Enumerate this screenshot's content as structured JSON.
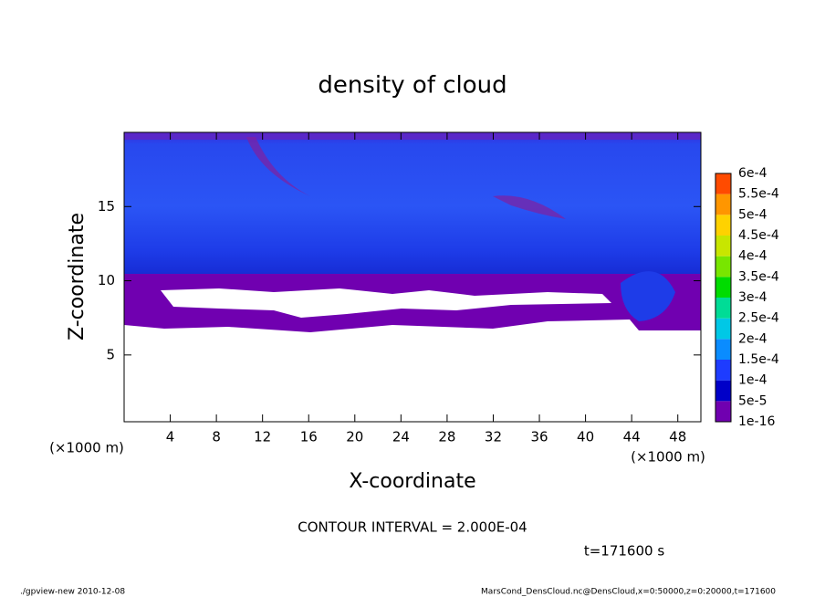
{
  "chart_data": {
    "type": "contour",
    "title": "density of cloud",
    "xlabel": "X-coordinate",
    "ylabel": "Z-coordinate",
    "x_unit": "(×1000 m)",
    "y_unit": "(×1000 m)",
    "xlim": [
      0,
      50
    ],
    "ylim": [
      0.5,
      20
    ],
    "xticks": [
      4,
      8,
      12,
      16,
      20,
      24,
      28,
      32,
      36,
      40,
      44,
      48
    ],
    "yticks": [
      5,
      10,
      15
    ],
    "levels": [
      {
        "value": 1e-16,
        "label": "1e-16"
      },
      {
        "value": 5e-05,
        "label": "5e-5"
      },
      {
        "value": 0.0001,
        "label": "1e-4"
      },
      {
        "value": 0.00015,
        "label": "1.5e-4"
      },
      {
        "value": 0.0002,
        "label": "2e-4"
      },
      {
        "value": 0.00025,
        "label": "2.5e-4"
      },
      {
        "value": 0.0003,
        "label": "3e-4"
      },
      {
        "value": 0.00035,
        "label": "3.5e-4"
      },
      {
        "value": 0.0004,
        "label": "4e-4"
      },
      {
        "value": 0.00045,
        "label": "4.5e-4"
      },
      {
        "value": 0.0005,
        "label": "5e-4"
      },
      {
        "value": 0.00055,
        "label": "5.5e-4"
      },
      {
        "value": 0.0006,
        "label": "6e-4"
      }
    ],
    "level_colors": [
      "#7000b0",
      "#0000c8",
      "#1e3cff",
      "#0a8cff",
      "#00c8e6",
      "#00dc96",
      "#00dc00",
      "#78e600",
      "#c8e600",
      "#ffd200",
      "#ff9600",
      "#ff4b00",
      "#ff8282"
    ],
    "contour_interval": "CONTOUR INTERVAL = 2.000E-04",
    "time_label": "t=171600 s",
    "footer_left": "./gpview-new   2010-12-08",
    "footer_right": "MarsCond_DensCloud.nc@DensCloud,x=0:50000,z=0:20000,t=171600"
  }
}
